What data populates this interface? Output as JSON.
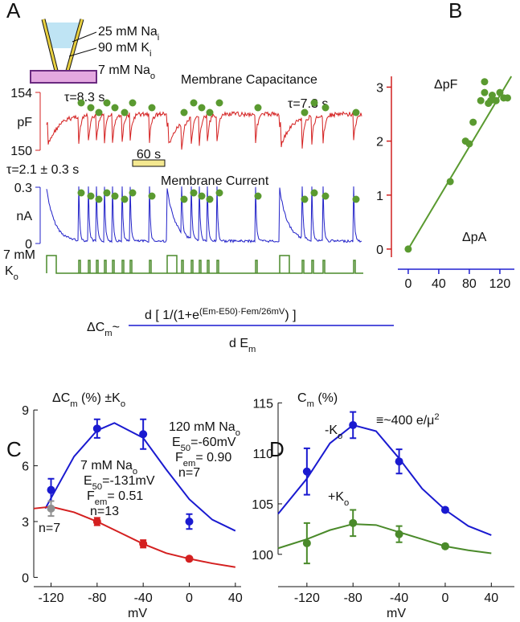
{
  "chart_data": [
    {
      "type": "trace",
      "panel_label": "A",
      "inset": [
        [
          "25 mM Na",
          "i"
        ],
        [
          "90 mM K",
          "i"
        ],
        [
          "7 mM Na",
          "o"
        ]
      ],
      "capacitance": {
        "title": "Membrane Capacitance",
        "unit": "pF",
        "ylim": [
          150,
          154
        ],
        "yticks": [
          150,
          154
        ],
        "color": "#d42020"
      },
      "current": {
        "title": "Membrane Current",
        "unit": "nA",
        "ylim": [
          0,
          0.3
        ],
        "yticks": [
          0,
          0.3
        ],
        "color": "#2020c8"
      },
      "potassium": {
        "label": "7 mM",
        "sublabel": [
          "K",
          "o"
        ],
        "color": "#4a8a2a"
      },
      "annotations": [
        "τ=8.3 s",
        "τ=7.3 s",
        "τ=2.1 ± 0.3 s"
      ],
      "scale_bar": "60 s"
    },
    {
      "type": "scatter",
      "panel_label": "B",
      "ylabel": "ΔpF",
      "xlabel": "ΔpA",
      "x": [
        0,
        55,
        75,
        80,
        85,
        95,
        100,
        100,
        105,
        108,
        110,
        115,
        120,
        125,
        130
      ],
      "values": [
        0,
        1.25,
        2.0,
        1.95,
        2.35,
        2.75,
        3.1,
        2.9,
        2.7,
        2.75,
        2.85,
        2.75,
        2.9,
        2.8,
        2.8
      ],
      "color": "#5a9a30",
      "fit": {
        "x": [
          0,
          135
        ],
        "values": [
          0,
          3.2
        ]
      },
      "xlim": [
        -22,
        139
      ],
      "ylim": [
        -0.15,
        3.2
      ],
      "xticks": [
        0,
        40,
        80,
        120
      ],
      "yticks": [
        0,
        1,
        2,
        3
      ],
      "xaxis_color": "#2020d0",
      "yaxis_color": "#d02020"
    },
    {
      "type": "errorbar",
      "panel_label": "C",
      "ylabel": [
        "ΔC",
        "m",
        " (%) ±K",
        "o"
      ],
      "xlabel": "mV",
      "xlim": [
        -135,
        45
      ],
      "ylim": [
        -0.5,
        9.44
      ],
      "xticks": [
        -120,
        -80,
        -40,
        0,
        40
      ],
      "yticks": [
        0,
        3,
        6,
        9
      ],
      "series": [
        {
          "color": "#1a1ad0",
          "x": [
            -120,
            -80,
            -40,
            0
          ],
          "values": [
            4.7,
            8.0,
            7.7,
            3.0
          ],
          "errors": [
            0.6,
            0.5,
            0.8,
            0.4
          ],
          "fit": {
            "x": [
              -125,
              -100,
              -80,
              -65,
              -40,
              -20,
              0,
              20,
              40
            ],
            "values": [
              3.7,
              6.5,
              7.9,
              8.3,
              7.5,
              5.8,
              4.2,
              3.1,
              2.5
            ]
          }
        },
        {
          "color": "#d42020",
          "x": [
            -80,
            -40,
            0
          ],
          "values": [
            3.0,
            1.8,
            1.0
          ],
          "errors": [
            0.2,
            0.2,
            0.1
          ],
          "fit": {
            "x": [
              -135,
              -120,
              -100,
              -80,
              -60,
              -40,
              -20,
              0,
              20,
              40
            ],
            "values": [
              3.7,
              3.8,
              3.5,
              3.0,
              2.4,
              1.8,
              1.3,
              1.0,
              0.75,
              0.55
            ]
          }
        },
        {
          "color": "#909090",
          "x": [
            -120
          ],
          "values": [
            3.7
          ],
          "errors": [
            0.4
          ]
        }
      ],
      "annotations": [
        {
          "color": "#1a1ad0",
          "lines": [
            [
              "120 mM Na",
              "o"
            ],
            [
              "E",
              "50",
              "=-60mV"
            ],
            [
              "F",
              "em",
              "= 0.90"
            ],
            [
              "n=7"
            ]
          ]
        },
        {
          "color": "#d42020",
          "lines": [
            [
              "7 mM Na",
              "o"
            ],
            [
              "E",
              "50",
              "=-131mV"
            ],
            [
              "F",
              "em",
              "= 0.51"
            ],
            [
              "n=13"
            ]
          ]
        },
        {
          "color": "#909090",
          "lines": [
            [
              "n=7"
            ]
          ]
        }
      ]
    },
    {
      "type": "errorbar",
      "panel_label": "D",
      "ylabel": [
        "C",
        "m",
        " (%)"
      ],
      "xlabel": "mV",
      "xlim": [
        -145,
        60
      ],
      "ylim": [
        96.8,
        115.9
      ],
      "xticks": [
        -120,
        -80,
        -40,
        0,
        40
      ],
      "yticks": [
        100,
        105,
        110,
        115
      ],
      "series": [
        {
          "color": "#1a1ad0",
          "x": [
            -120,
            -80,
            -40,
            0
          ],
          "values": [
            108.2,
            112.8,
            109.2,
            104.4
          ],
          "errors": [
            2.3,
            1.3,
            1.2,
            0.2
          ],
          "fit": {
            "x": [
              -145,
              -120,
              -100,
              -80,
              -60,
              -40,
              -20,
              0,
              20,
              40
            ],
            "values": [
              104.0,
              107.5,
              111.0,
              112.8,
              112.2,
              109.5,
              106.5,
              104.4,
              102.8,
              101.9
            ]
          }
        },
        {
          "color": "#4a8a2a",
          "x": [
            -120,
            -80,
            -40,
            0
          ],
          "values": [
            101.1,
            103.1,
            102.0,
            100.8
          ],
          "errors": [
            2.0,
            1.3,
            0.8,
            0.2
          ],
          "fit": {
            "x": [
              -145,
              -120,
              -100,
              -80,
              -60,
              -40,
              -20,
              0,
              20,
              40
            ],
            "values": [
              100.6,
              101.5,
              102.4,
              103.0,
              102.9,
              102.2,
              101.5,
              100.8,
              100.4,
              100.1
            ]
          }
        }
      ],
      "annotations": [
        {
          "color": "#4a8a2a",
          "lines": [
            [
              "-K",
              "o"
            ]
          ]
        },
        {
          "color": "#4a8a2a",
          "lines": [
            [
              "+K",
              "o"
            ]
          ]
        },
        {
          "color": "#111111",
          "script": "super",
          "lines": [
            [
              "≡~400 e/μ",
              "2"
            ]
          ]
        }
      ]
    }
  ],
  "equation": {
    "lhs": [
      "ΔC",
      "m",
      "~"
    ],
    "numerator": [
      "d [ 1/(1+e",
      "(Em-E50)·Fem/26mV",
      ") ]"
    ],
    "denominator": [
      "d E",
      "m"
    ]
  }
}
